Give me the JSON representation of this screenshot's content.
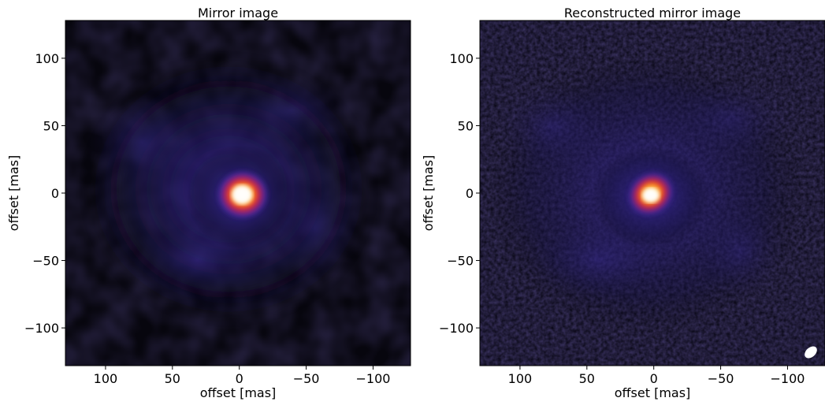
{
  "chart_data": [
    {
      "type": "heatmap",
      "title": "Mirror image",
      "xlabel": "offset [mas]",
      "ylabel": "offset [mas]",
      "xlim": [
        130,
        -128
      ],
      "ylim": [
        -128,
        128
      ],
      "xticks": [
        100,
        50,
        0,
        -50,
        -100
      ],
      "xtick_labels": [
        "100",
        "50",
        "0",
        "−50",
        "−100"
      ],
      "yticks": [
        100,
        50,
        0,
        -50,
        -100
      ],
      "ytick_labels": [
        "100",
        "50",
        "0",
        "−50",
        "−100"
      ],
      "colormap": "CMRmap",
      "peak_offset": [
        -4,
        0
      ],
      "beam_shown": false
    },
    {
      "type": "heatmap",
      "title": "Reconstructed mirror image",
      "xlabel": "offset [mas]",
      "ylabel": "offset [mas]",
      "xlim": [
        130,
        -128
      ],
      "ylim": [
        -128,
        128
      ],
      "xticks": [
        100,
        50,
        0,
        -50,
        -100
      ],
      "xtick_labels": [
        "100",
        "50",
        "0",
        "−50",
        "−100"
      ],
      "yticks": [
        100,
        50,
        0,
        -50,
        -100
      ],
      "ytick_labels": [
        "100",
        "50",
        "0",
        "−50",
        "−100"
      ],
      "colormap": "CMRmap",
      "peak_offset": [
        0,
        -2
      ],
      "beam_shown": true,
      "beam_color": "#ffffff"
    }
  ]
}
